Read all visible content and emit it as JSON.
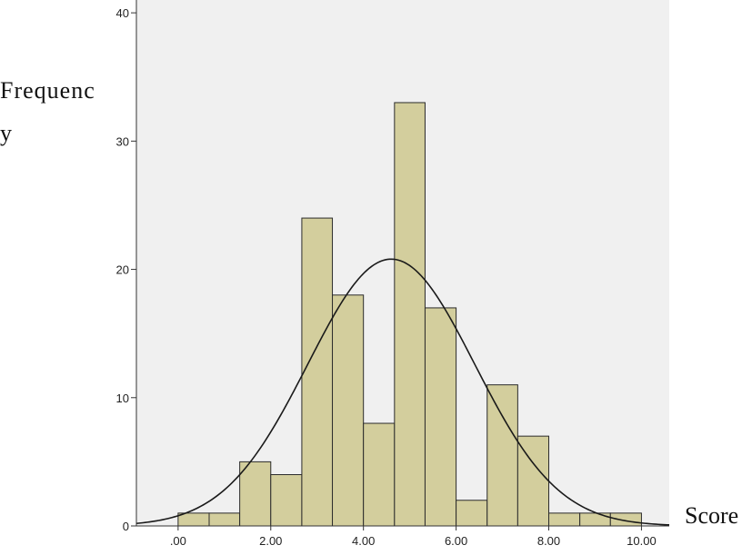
{
  "chart_data": {
    "type": "bar",
    "title": "",
    "ylabel_lines": [
      "Frequenc",
      "y"
    ],
    "xlabel": "Score",
    "xlim": [
      -0.9,
      10.6
    ],
    "ylim": [
      0,
      41
    ],
    "x_ticks": [
      {
        "value": 0,
        "label": ".00"
      },
      {
        "value": 2,
        "label": "2.00"
      },
      {
        "value": 4,
        "label": "4.00"
      },
      {
        "value": 6,
        "label": "6.00"
      },
      {
        "value": 8,
        "label": "8.00"
      },
      {
        "value": 10,
        "label": "10.00"
      }
    ],
    "y_ticks": [
      {
        "value": 0,
        "label": "0"
      },
      {
        "value": 10,
        "label": "10"
      },
      {
        "value": 20,
        "label": "20"
      },
      {
        "value": 30,
        "label": "30"
      },
      {
        "value": 40,
        "label": "40"
      }
    ],
    "bins": [
      {
        "x0": 0.0,
        "x1": 0.67,
        "count": 1
      },
      {
        "x0": 0.67,
        "x1": 1.33,
        "count": 1
      },
      {
        "x0": 1.33,
        "x1": 2.0,
        "count": 5
      },
      {
        "x0": 2.0,
        "x1": 2.67,
        "count": 4
      },
      {
        "x0": 2.67,
        "x1": 3.33,
        "count": 24
      },
      {
        "x0": 3.33,
        "x1": 4.0,
        "count": 18
      },
      {
        "x0": 4.0,
        "x1": 4.67,
        "count": 8
      },
      {
        "x0": 4.67,
        "x1": 5.33,
        "count": 33
      },
      {
        "x0": 5.33,
        "x1": 6.0,
        "count": 17
      },
      {
        "x0": 6.0,
        "x1": 6.67,
        "count": 2
      },
      {
        "x0": 6.67,
        "x1": 7.33,
        "count": 11
      },
      {
        "x0": 7.33,
        "x1": 8.0,
        "count": 7
      },
      {
        "x0": 8.0,
        "x1": 8.67,
        "count": 1
      },
      {
        "x0": 8.67,
        "x1": 9.33,
        "count": 1
      },
      {
        "x0": 9.33,
        "x1": 10.0,
        "count": 1
      }
    ],
    "normal_curve": {
      "mean": 4.6,
      "sd": 1.8,
      "peak": 20.8
    },
    "colors": {
      "plot_background": "#f0f0f0",
      "bar_fill": "#d3ce9d",
      "bar_stroke": "#2b2b2b",
      "curve": "#1a1a1a",
      "axis": "#333333"
    },
    "grid": false,
    "legend": "none"
  }
}
